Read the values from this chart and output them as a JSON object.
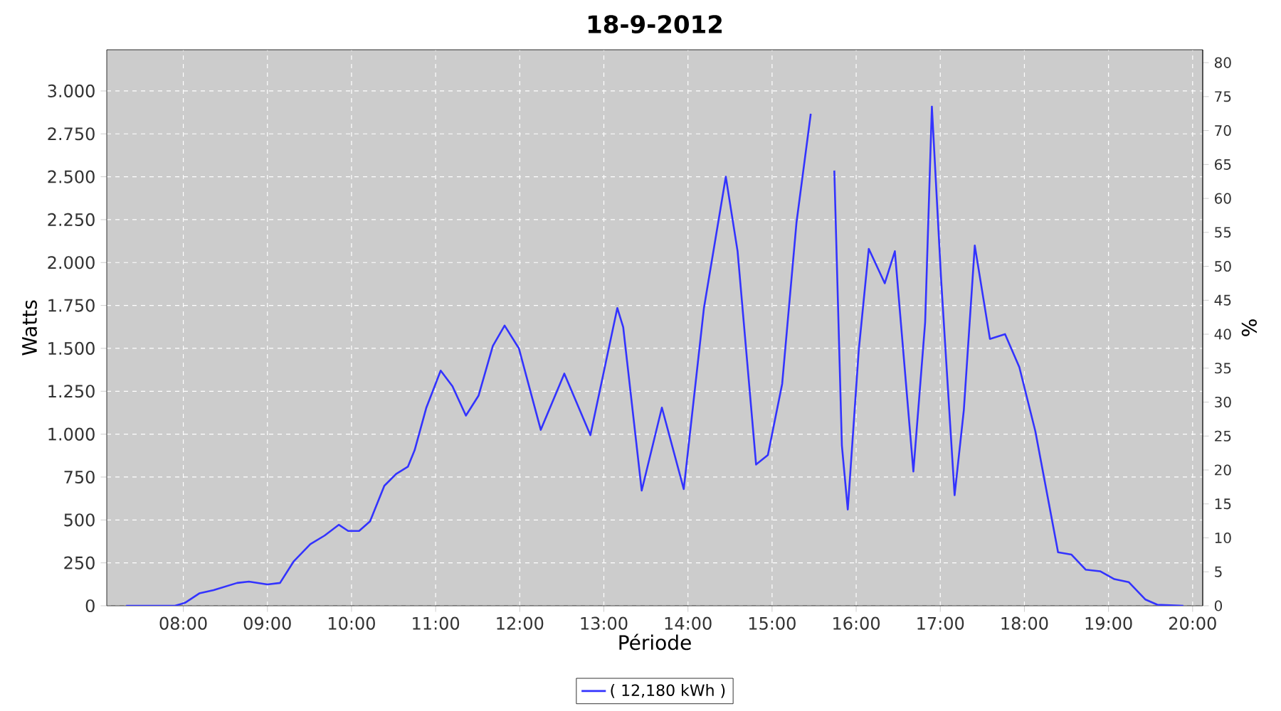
{
  "chart_data": {
    "type": "line",
    "title": "18-9-2012",
    "xlabel": "Période",
    "ylabel": "Watts",
    "y2label": "%",
    "x": [
      7.32,
      7.9,
      8.02,
      8.19,
      8.36,
      8.64,
      8.78,
      9.0,
      9.15,
      9.31,
      9.51,
      9.68,
      9.85,
      9.96,
      10.09,
      10.22,
      10.39,
      10.53,
      10.67,
      10.75,
      10.89,
      11.06,
      11.2,
      11.36,
      11.51,
      11.68,
      11.82,
      11.99,
      12.25,
      12.53,
      12.84,
      13.16,
      13.23,
      13.45,
      13.69,
      13.95,
      14.19,
      14.45,
      14.59,
      14.81,
      14.95,
      15.12,
      15.29,
      15.46,
      15.56,
      15.68,
      15.74,
      15.83,
      15.9,
      16.03,
      16.15,
      16.34,
      16.46,
      16.68,
      16.82,
      16.9,
      17.01,
      17.17,
      17.28,
      17.41,
      17.59,
      17.77,
      17.94,
      18.13,
      18.4,
      18.56,
      18.73,
      18.9,
      19.07,
      19.24,
      19.44,
      19.58,
      19.89
    ],
    "series": [
      {
        "name": "( 12,180 kWh )",
        "color": "#3333ff",
        "values": [
          0,
          0,
          17,
          72,
          91,
          133,
          141,
          124,
          133,
          257,
          359,
          409,
          472,
          436,
          436,
          492,
          699,
          768,
          810,
          906,
          1155,
          1370,
          1279,
          1108,
          1224,
          1514,
          1633,
          1500,
          1025,
          1353,
          994,
          1735,
          1624,
          671,
          1155,
          680,
          1735,
          2500,
          2066,
          823,
          878,
          1293,
          2232,
          2867,
          null,
          null,
          2536,
          934,
          561,
          1486,
          2080,
          1879,
          2066,
          782,
          1652,
          2909,
          1900,
          644,
          1141,
          2099,
          1555,
          1583,
          1390,
          1017,
          312,
          298,
          210,
          201,
          155,
          138,
          36,
          6,
          0
        ]
      }
    ],
    "xlim": [
      7.09,
      20.12
    ],
    "xticks": [
      {
        "value": 8,
        "label": "08:00"
      },
      {
        "value": 9,
        "label": "09:00"
      },
      {
        "value": 10,
        "label": "10:00"
      },
      {
        "value": 11,
        "label": "11:00"
      },
      {
        "value": 12,
        "label": "12:00"
      },
      {
        "value": 13,
        "label": "13:00"
      },
      {
        "value": 14,
        "label": "14:00"
      },
      {
        "value": 15,
        "label": "15:00"
      },
      {
        "value": 16,
        "label": "16:00"
      },
      {
        "value": 17,
        "label": "17:00"
      },
      {
        "value": 18,
        "label": "18:00"
      },
      {
        "value": 19,
        "label": "19:00"
      },
      {
        "value": 20,
        "label": "20:00"
      }
    ],
    "ylim": [
      0,
      3240
    ],
    "yticks": [
      0,
      250,
      500,
      750,
      {
        "value": 1000,
        "label": "1.000"
      },
      {
        "value": 1250,
        "label": "1.250"
      },
      {
        "value": 1500,
        "label": "1.500"
      },
      {
        "value": 1750,
        "label": "1.750"
      },
      {
        "value": 2000,
        "label": "2.000"
      },
      {
        "value": 2250,
        "label": "2.250"
      },
      {
        "value": 2500,
        "label": "2.500"
      },
      {
        "value": 2750,
        "label": "2.750"
      },
      {
        "value": 3000,
        "label": "3.000"
      }
    ],
    "y2lim": [
      0,
      81.9
    ],
    "y2ticks": [
      0,
      5,
      10,
      15,
      20,
      25,
      30,
      35,
      40,
      45,
      50,
      55,
      60,
      65,
      70,
      75,
      80
    ],
    "grid": true,
    "legend": "bottom",
    "line_style": "solid"
  }
}
